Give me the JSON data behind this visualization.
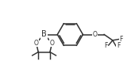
{
  "bg_color": "#ffffff",
  "line_color": "#333333",
  "text_color": "#333333",
  "line_width": 1.1,
  "font_size": 5.5,
  "fig_width": 1.7,
  "fig_height": 0.87,
  "dpi": 100,
  "xlim": [
    -4.5,
    7.0
  ],
  "ylim": [
    -3.2,
    3.2
  ]
}
